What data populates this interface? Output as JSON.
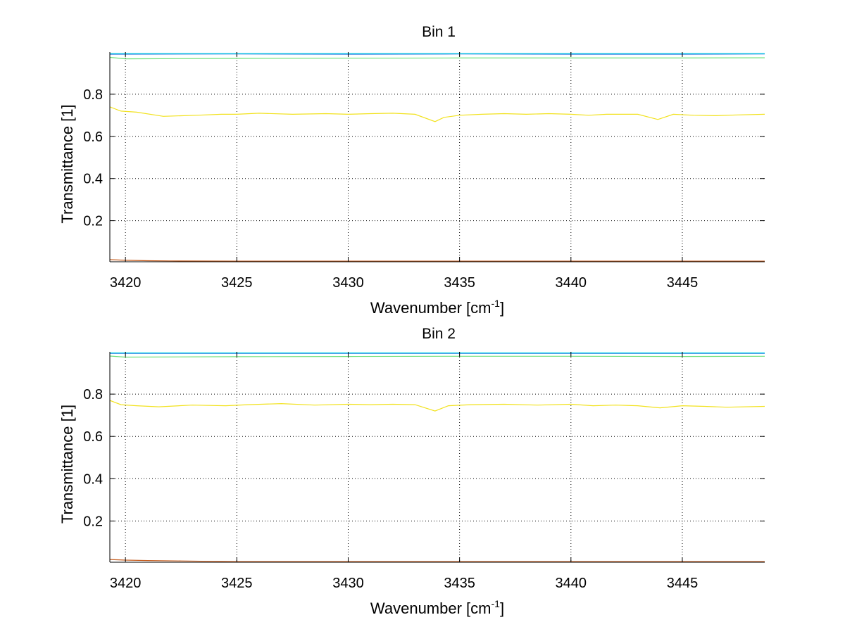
{
  "chart_data": [
    {
      "type": "line",
      "title": "Bin 1",
      "xlabel": "Wavenumber [cm",
      "xlabel_sup": "-1",
      "xlabel_end": "]",
      "ylabel": "Transmittance [1]",
      "xlim": [
        3419.3,
        3448.7
      ],
      "ylim": [
        0.005,
        1.0
      ],
      "xticks": [
        3420,
        3425,
        3430,
        3435,
        3440,
        3445
      ],
      "yticks": [
        0.2,
        0.4,
        0.6,
        0.8
      ],
      "xtick_labels": [
        "3420",
        "3425",
        "3430",
        "3435",
        "3440",
        "3445"
      ],
      "ytick_labels": [
        "0.2",
        "0.4",
        "0.6",
        "0.8"
      ],
      "grid": true,
      "series": [
        {
          "color": "#1a6fe0",
          "x": [
            3419.3,
            3425,
            3430,
            3435,
            3440,
            3445,
            3448.7
          ],
          "y": [
            0.99,
            0.991,
            0.99,
            0.991,
            0.99,
            0.99,
            0.991
          ]
        },
        {
          "color": "#19d2e6",
          "x": [
            3419.3,
            3425,
            3430,
            3435,
            3440,
            3445,
            3448.7
          ],
          "y": [
            0.993,
            0.993,
            0.993,
            0.993,
            0.993,
            0.993,
            0.993
          ]
        },
        {
          "color": "#6ee07a",
          "x": [
            3419.3,
            3420,
            3425,
            3430,
            3435,
            3440,
            3445,
            3448.7
          ],
          "y": [
            0.975,
            0.968,
            0.97,
            0.971,
            0.972,
            0.972,
            0.972,
            0.973
          ]
        },
        {
          "color": "#f2e21e",
          "x": [
            3419.3,
            3419.8,
            3420.5,
            3421.7,
            3423.2,
            3424.3,
            3425,
            3426,
            3427.5,
            3429,
            3430,
            3431,
            3432,
            3433,
            3433.9,
            3434.3,
            3435,
            3436,
            3437,
            3438,
            3439,
            3440,
            3440.8,
            3441.6,
            3443,
            3443.9,
            3444.6,
            3445.5,
            3446.5,
            3447.5,
            3448.7
          ],
          "y": [
            0.74,
            0.72,
            0.715,
            0.695,
            0.7,
            0.705,
            0.705,
            0.71,
            0.705,
            0.708,
            0.705,
            0.708,
            0.71,
            0.705,
            0.67,
            0.69,
            0.7,
            0.705,
            0.708,
            0.705,
            0.708,
            0.705,
            0.7,
            0.705,
            0.705,
            0.68,
            0.705,
            0.7,
            0.698,
            0.702,
            0.705
          ]
        },
        {
          "color": "#c45a1b",
          "x": [
            3419.3,
            3420,
            3421,
            3422,
            3425,
            3430,
            3435,
            3440,
            3445,
            3448.7
          ],
          "y": [
            0.015,
            0.012,
            0.01,
            0.009,
            0.008,
            0.008,
            0.008,
            0.008,
            0.008,
            0.008
          ]
        }
      ]
    },
    {
      "type": "line",
      "title": "Bin 2",
      "xlabel": "Wavenumber [cm",
      "xlabel_sup": "-1",
      "xlabel_end": "]",
      "ylabel": "Transmittance [1]",
      "xlim": [
        3419.3,
        3448.7
      ],
      "ylim": [
        0.005,
        1.0
      ],
      "xticks": [
        3420,
        3425,
        3430,
        3435,
        3440,
        3445
      ],
      "yticks": [
        0.2,
        0.4,
        0.6,
        0.8
      ],
      "xtick_labels": [
        "3420",
        "3425",
        "3430",
        "3435",
        "3440",
        "3445"
      ],
      "ytick_labels": [
        "0.2",
        "0.4",
        "0.6",
        "0.8"
      ],
      "grid": true,
      "series": [
        {
          "color": "#1a6fe0",
          "x": [
            3419.3,
            3425,
            3430,
            3435,
            3440,
            3445,
            3448.7
          ],
          "y": [
            0.993,
            0.993,
            0.993,
            0.993,
            0.993,
            0.993,
            0.993
          ]
        },
        {
          "color": "#19d2e6",
          "x": [
            3419.3,
            3425,
            3430,
            3435,
            3440,
            3445,
            3448.7
          ],
          "y": [
            0.995,
            0.995,
            0.995,
            0.995,
            0.995,
            0.995,
            0.995
          ]
        },
        {
          "color": "#6ee07a",
          "x": [
            3419.3,
            3420,
            3425,
            3430,
            3435,
            3440,
            3445,
            3448.7
          ],
          "y": [
            0.98,
            0.975,
            0.977,
            0.978,
            0.979,
            0.979,
            0.978,
            0.979
          ]
        },
        {
          "color": "#f2e21e",
          "x": [
            3419.3,
            3419.8,
            3420.5,
            3421.5,
            3423,
            3424.5,
            3425.5,
            3427,
            3428.5,
            3430,
            3431,
            3432,
            3433,
            3433.9,
            3434.5,
            3435.5,
            3437,
            3438.5,
            3440,
            3441,
            3442,
            3443,
            3444,
            3445,
            3446,
            3447,
            3448.7
          ],
          "y": [
            0.77,
            0.75,
            0.745,
            0.74,
            0.748,
            0.745,
            0.75,
            0.755,
            0.748,
            0.752,
            0.75,
            0.752,
            0.75,
            0.72,
            0.745,
            0.75,
            0.752,
            0.748,
            0.752,
            0.745,
            0.748,
            0.745,
            0.735,
            0.745,
            0.742,
            0.738,
            0.742
          ]
        },
        {
          "color": "#c45a1b",
          "x": [
            3419.3,
            3420,
            3421,
            3422.5,
            3424,
            3425,
            3430,
            3435,
            3440,
            3445,
            3448.7
          ],
          "y": [
            0.018,
            0.015,
            0.013,
            0.011,
            0.009,
            0.008,
            0.008,
            0.008,
            0.008,
            0.008,
            0.008
          ]
        }
      ]
    }
  ]
}
